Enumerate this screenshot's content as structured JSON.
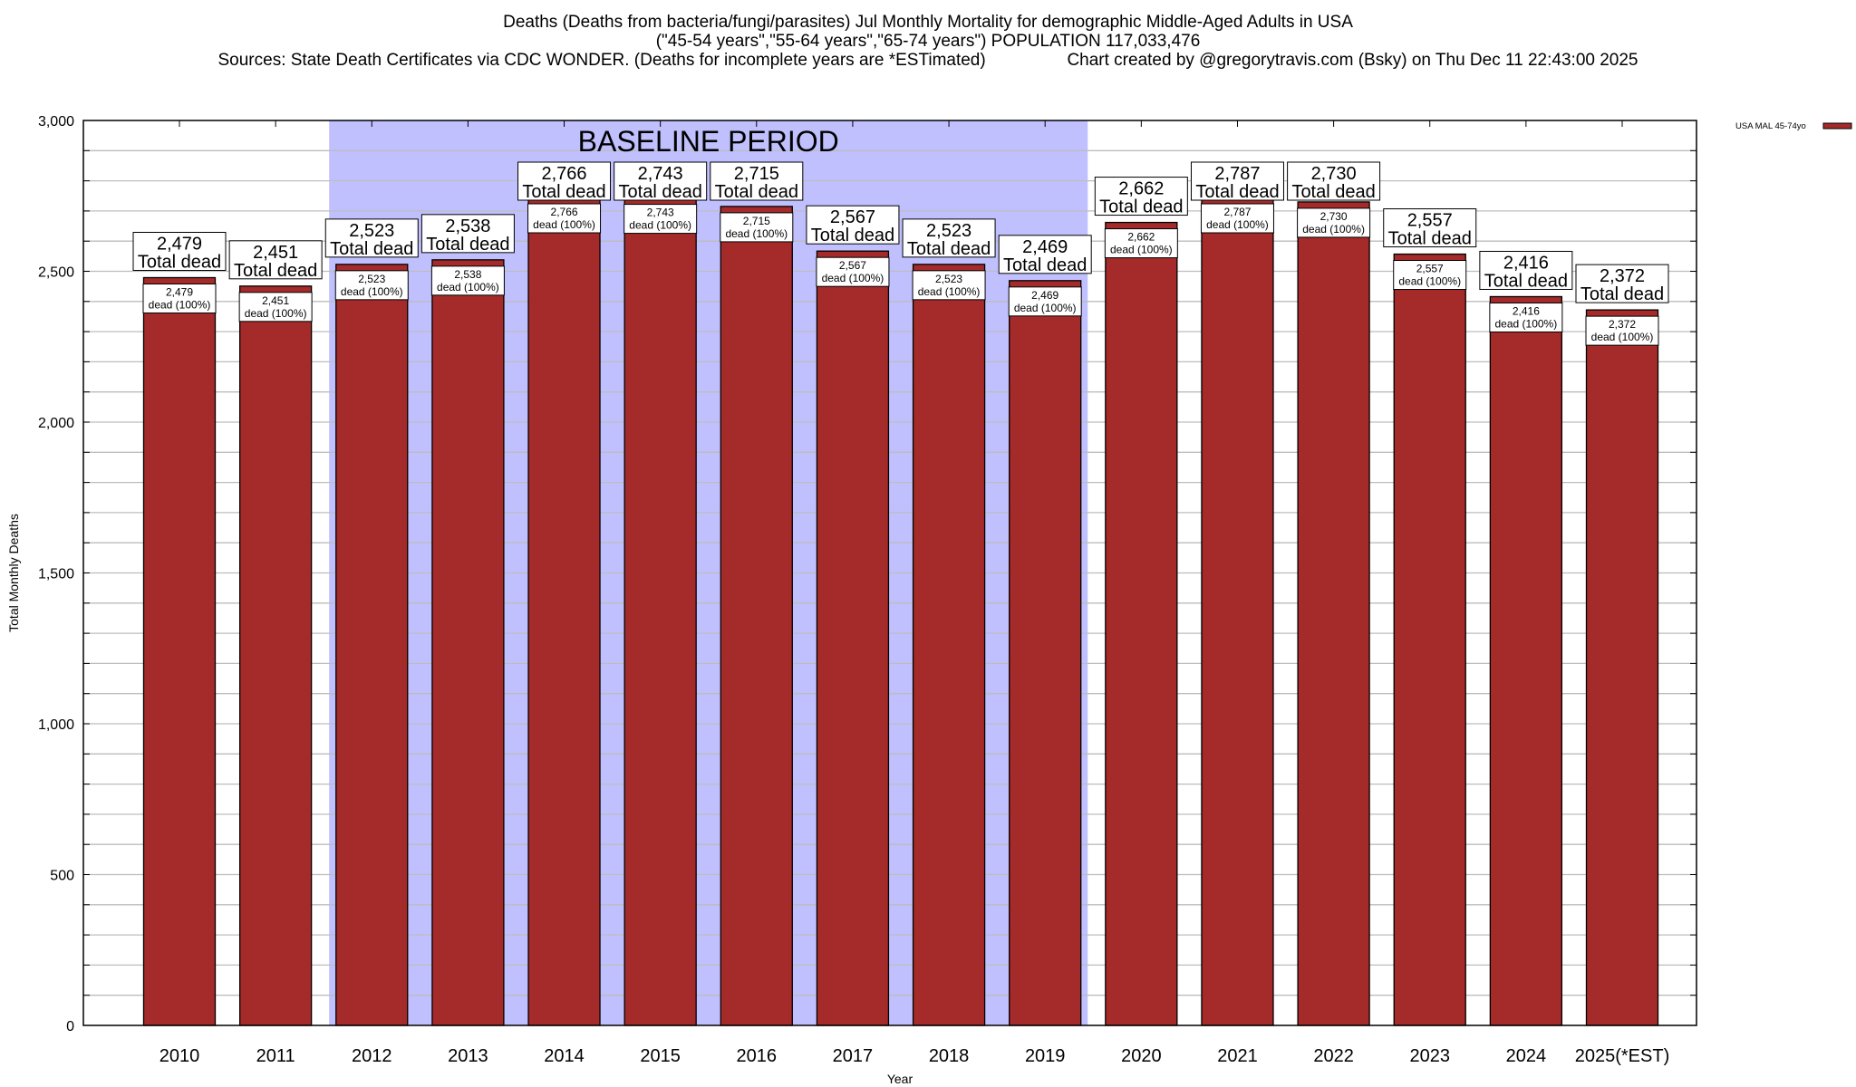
{
  "header": {
    "title_line1": "Deaths (Deaths from bacteria/fungi/parasites) Jul Monthly Mortality for demographic Middle-Aged Adults in USA",
    "title_line2": "(\"45-54 years\",\"55-64 years\",\"65-74 years\") POPULATION 117,033,476",
    "title_line3": "Sources: State Death Certificates via CDC WONDER. (Deaths for incomplete years are *ESTimated)                 Chart created by @gregorytravis.com (Bsky) on Thu Dec 11 22:43:00 2025"
  },
  "chart_data": {
    "type": "bar",
    "title": "Deaths (Deaths from bacteria/fungi/parasites) Jul Monthly Mortality for demographic Middle-Aged Adults in USA",
    "xlabel": "Year",
    "ylabel": "Total Monthly Deaths",
    "ylim": [
      0,
      3000
    ],
    "yticks": [
      0,
      500,
      1000,
      1500,
      2000,
      2500,
      3000
    ],
    "ytick_labels": [
      "0",
      "500",
      "1,000",
      "1,500",
      "2,000",
      "2,500",
      "3,000"
    ],
    "minor_grid_step": 100,
    "grid": true,
    "categories": [
      "2010",
      "2011",
      "2012",
      "2013",
      "2014",
      "2015",
      "2016",
      "2017",
      "2018",
      "2019",
      "2020",
      "2021",
      "2022",
      "2023",
      "2024",
      "2025(*EST)"
    ],
    "series": [
      {
        "name": "USA MAL 45-74yo",
        "color": "#a52a2a",
        "values": [
          2479,
          2451,
          2523,
          2538,
          2766,
          2743,
          2715,
          2567,
          2523,
          2469,
          2662,
          2787,
          2730,
          2557,
          2416,
          2372
        ]
      }
    ],
    "total_label_suffix": "Total dead",
    "inner_label_suffix": "dead (100%)",
    "baseline_period": {
      "label": "BASELINE PERIOD",
      "start_category": "2012",
      "end_category": "2019",
      "color": "#c0c0ff"
    },
    "legend": {
      "position": "top-right",
      "entries": [
        "USA MAL 45-74yo"
      ]
    }
  }
}
